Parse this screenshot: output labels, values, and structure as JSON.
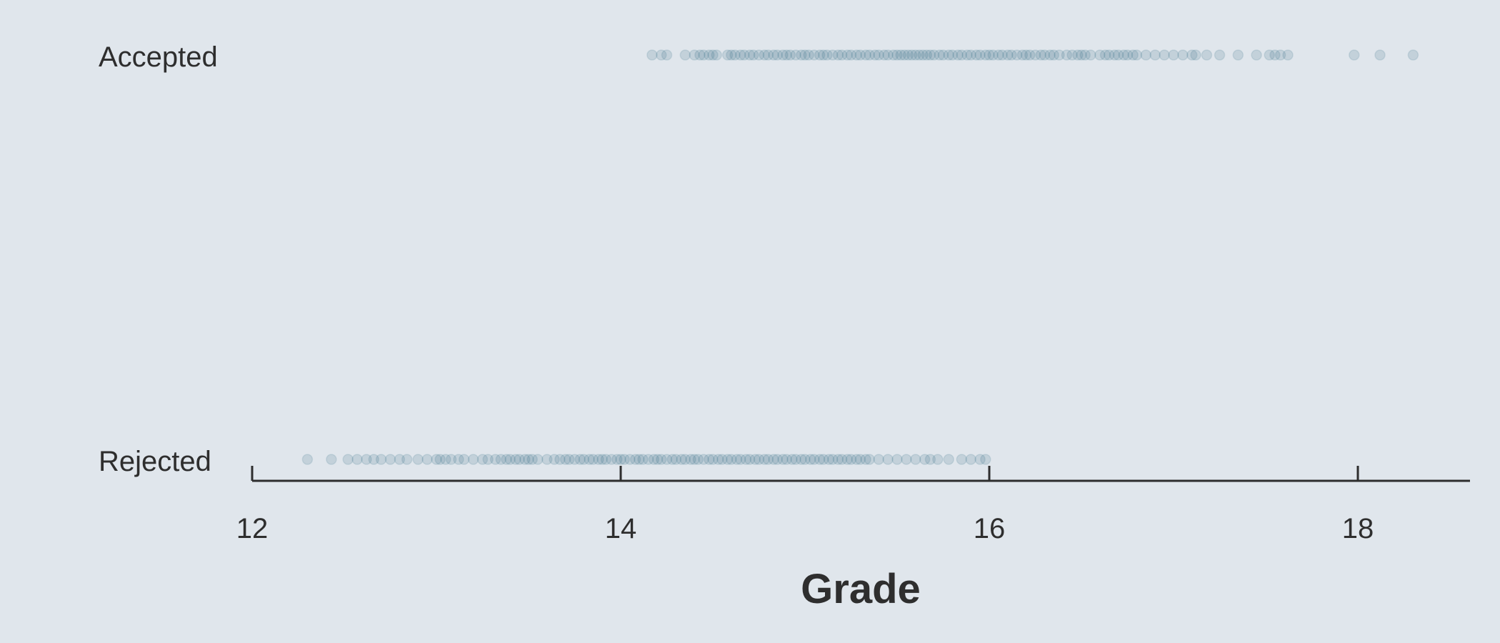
{
  "chart_data": {
    "type": "scatter",
    "title": "",
    "xlabel": "Grade",
    "ylabel": "",
    "xlim": [
      12,
      18.6
    ],
    "x_ticks": [
      "12",
      "14",
      "16",
      "18"
    ],
    "categories": [
      "Accepted",
      "Rejected"
    ],
    "grid": false,
    "marker_color": "#1f5f78",
    "marker_opacity": 0.15,
    "background_color": "#e0e6ec",
    "series": [
      {
        "name": "Accepted",
        "x": [
          14.17,
          14.22,
          14.25,
          14.35,
          14.4,
          14.43,
          14.45,
          14.48,
          14.5,
          14.52,
          14.58,
          14.6,
          14.62,
          14.65,
          14.67,
          14.7,
          14.72,
          14.75,
          14.78,
          14.8,
          14.83,
          14.85,
          14.88,
          14.9,
          14.92,
          14.95,
          14.98,
          15.0,
          15.02,
          15.05,
          15.08,
          15.1,
          15.12,
          15.15,
          15.18,
          15.2,
          15.23,
          15.25,
          15.28,
          15.3,
          15.33,
          15.35,
          15.38,
          15.4,
          15.43,
          15.45,
          15.48,
          15.5,
          15.52,
          15.54,
          15.56,
          15.58,
          15.6,
          15.62,
          15.64,
          15.66,
          15.68,
          15.7,
          15.73,
          15.75,
          15.78,
          15.8,
          15.83,
          15.85,
          15.88,
          15.9,
          15.93,
          15.95,
          15.98,
          16.0,
          16.02,
          16.05,
          16.07,
          16.1,
          16.12,
          16.15,
          16.18,
          16.2,
          16.22,
          16.25,
          16.28,
          16.3,
          16.33,
          16.35,
          16.38,
          16.42,
          16.45,
          16.48,
          16.5,
          16.52,
          16.55,
          16.6,
          16.63,
          16.65,
          16.68,
          16.7,
          16.73,
          16.75,
          16.78,
          16.8,
          16.85,
          16.9,
          16.95,
          17.0,
          17.05,
          17.1,
          17.12,
          17.18,
          17.25,
          17.35,
          17.45,
          17.52,
          17.55,
          17.58,
          17.62,
          17.98,
          18.12,
          18.3
        ]
      },
      {
        "name": "Rejected",
        "x": [
          12.3,
          12.43,
          12.52,
          12.57,
          12.62,
          12.66,
          12.7,
          12.75,
          12.8,
          12.84,
          12.9,
          12.95,
          13.0,
          13.02,
          13.05,
          13.08,
          13.12,
          13.15,
          13.2,
          13.25,
          13.28,
          13.32,
          13.35,
          13.38,
          13.4,
          13.43,
          13.45,
          13.48,
          13.5,
          13.52,
          13.55,
          13.6,
          13.64,
          13.67,
          13.7,
          13.72,
          13.75,
          13.78,
          13.8,
          13.83,
          13.85,
          13.88,
          13.9,
          13.92,
          13.95,
          13.98,
          14.0,
          14.02,
          14.05,
          14.08,
          14.1,
          14.12,
          14.15,
          14.18,
          14.2,
          14.22,
          14.25,
          14.28,
          14.3,
          14.33,
          14.35,
          14.38,
          14.4,
          14.42,
          14.45,
          14.48,
          14.5,
          14.53,
          14.55,
          14.58,
          14.6,
          14.63,
          14.65,
          14.68,
          14.7,
          14.73,
          14.75,
          14.78,
          14.8,
          14.83,
          14.85,
          14.88,
          14.9,
          14.93,
          14.95,
          14.98,
          15.0,
          15.03,
          15.05,
          15.08,
          15.1,
          15.13,
          15.15,
          15.18,
          15.2,
          15.23,
          15.25,
          15.28,
          15.3,
          15.33,
          15.35,
          15.4,
          15.45,
          15.5,
          15.55,
          15.6,
          15.65,
          15.68,
          15.72,
          15.78,
          15.85,
          15.9,
          15.95,
          15.98
        ]
      }
    ]
  }
}
